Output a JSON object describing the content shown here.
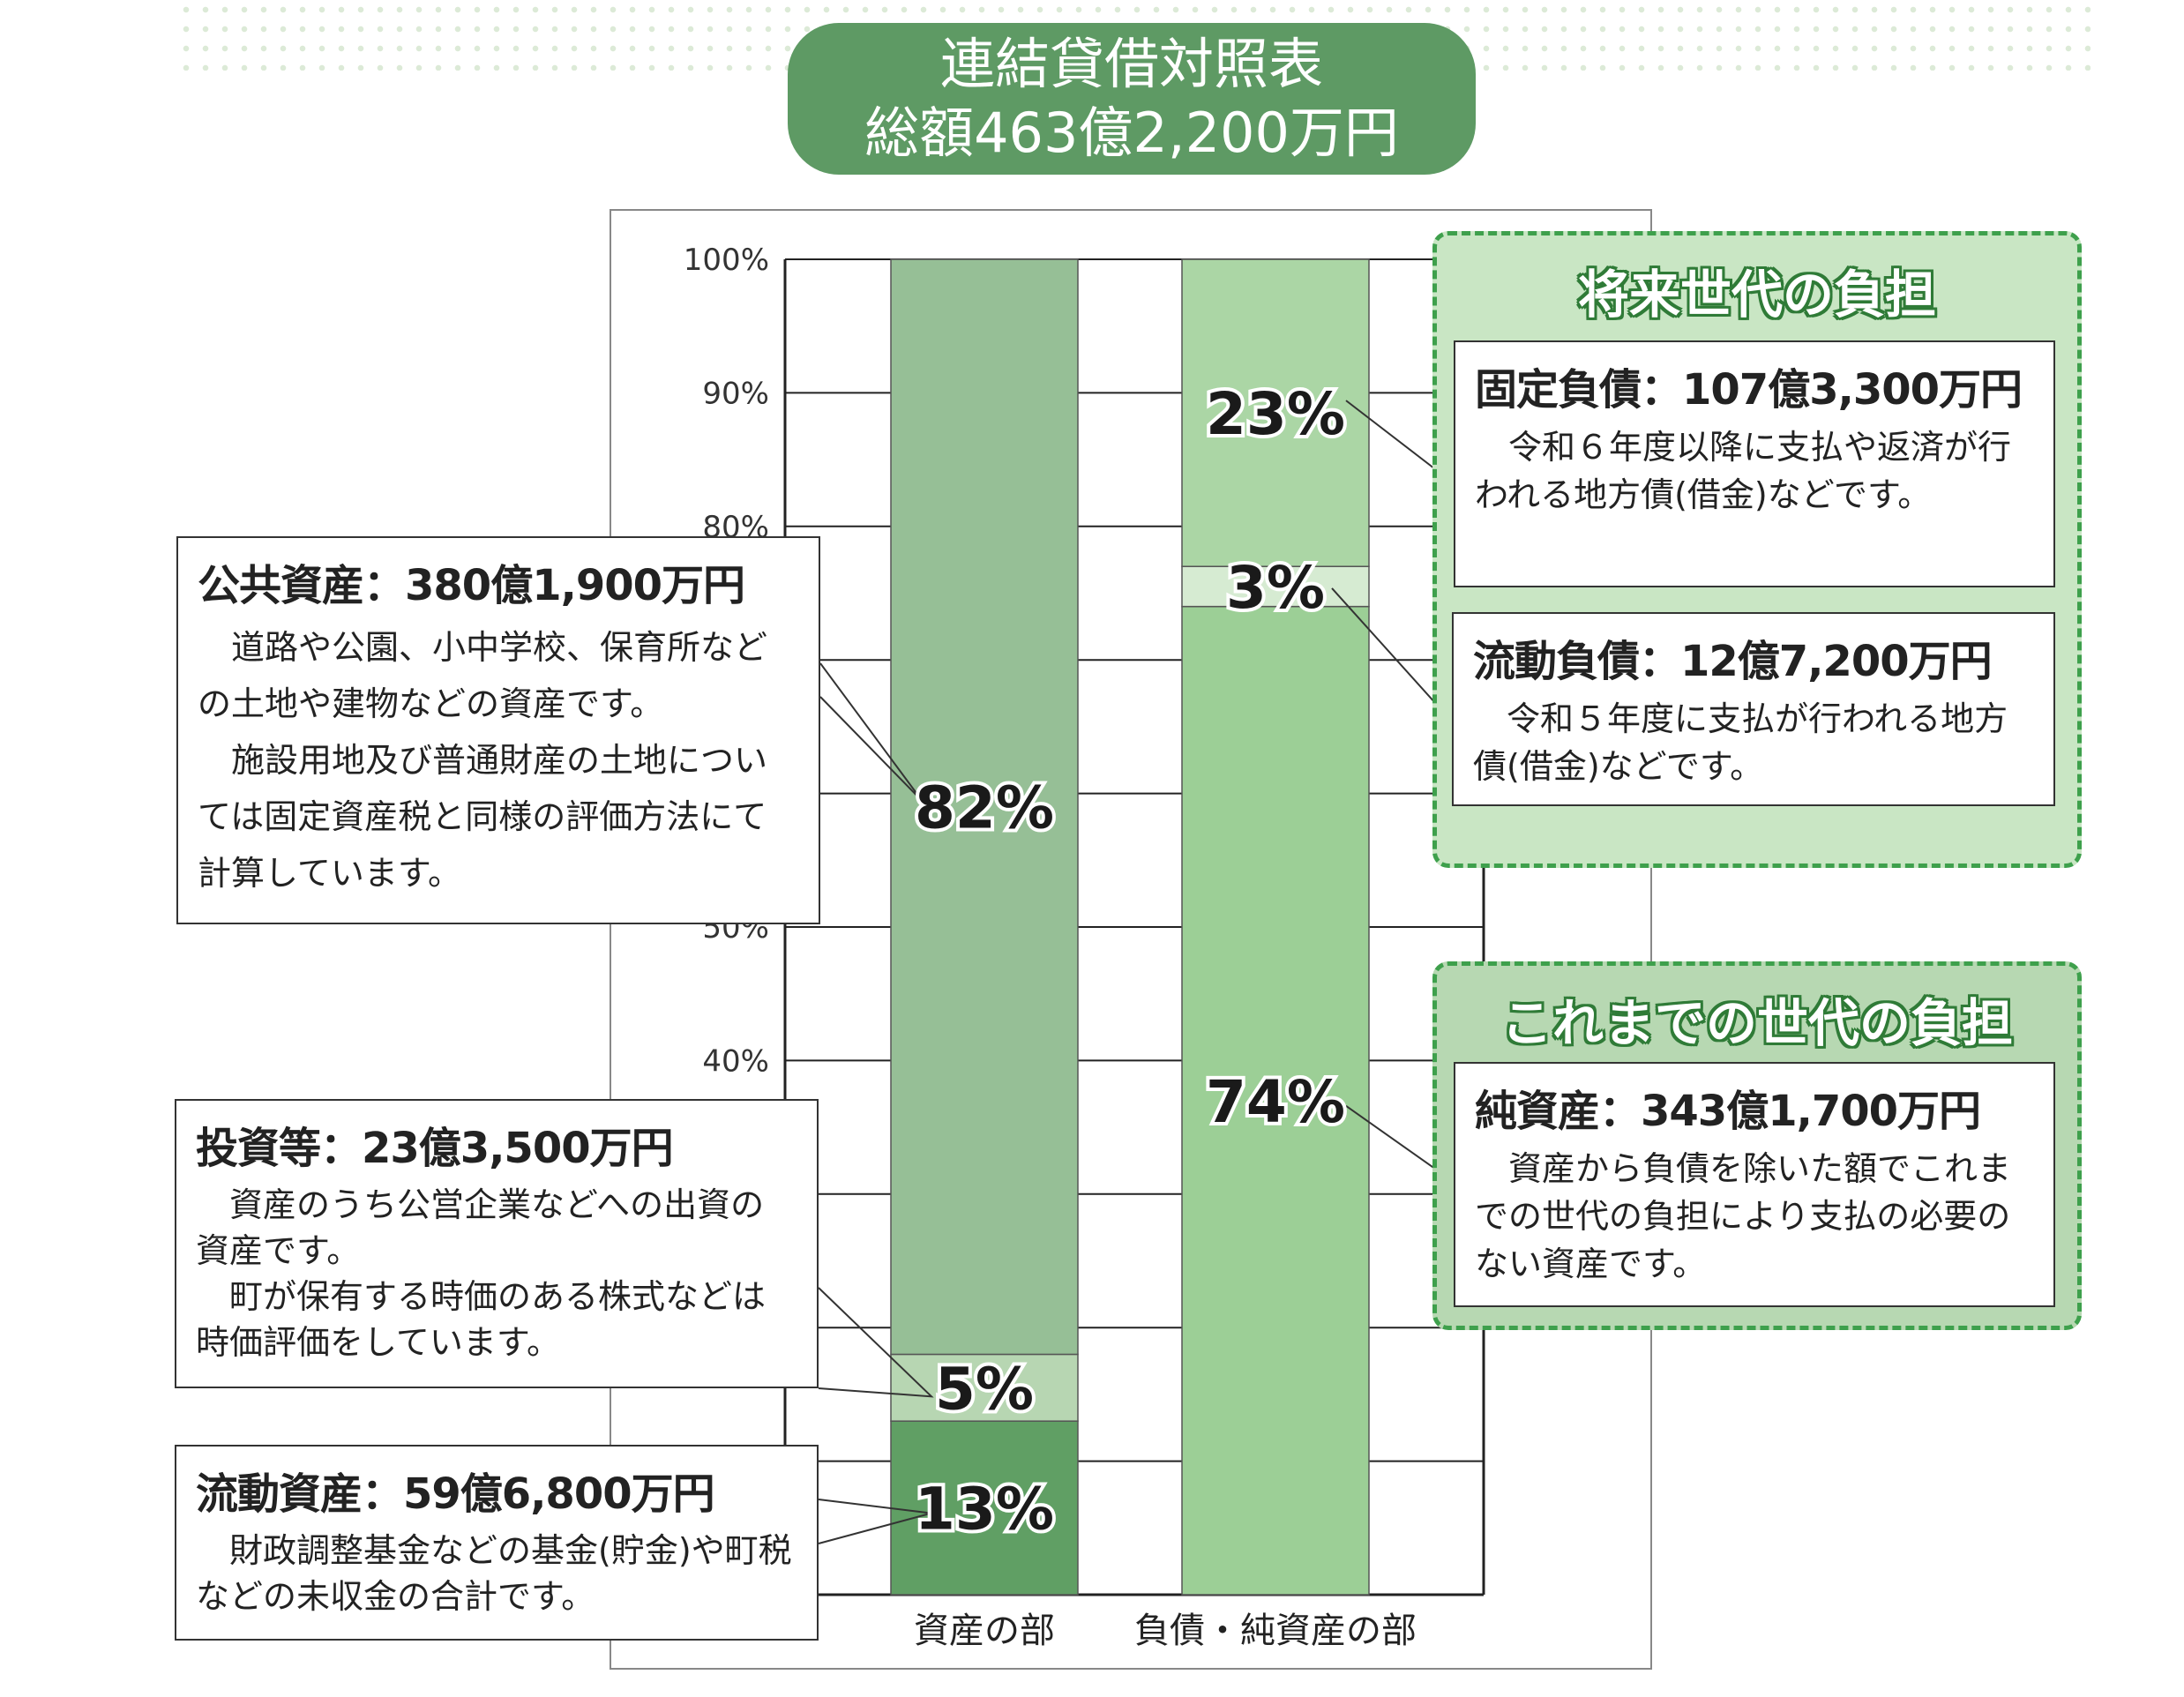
{
  "title": {
    "line1": "連結貸借対照表",
    "line2": "総額463億2,200万円"
  },
  "colors": {
    "title_bg": "#5e9a64",
    "asset_public": "#96bf96",
    "asset_invest": "#b7d6b2",
    "asset_current": "#609f64",
    "liab_fixed": "#abd6a5",
    "liab_current": "#d6ebd2",
    "net_assets": "#9ccf96",
    "future_group_bg": "#c9e6c4",
    "past_group_bg": "#b7d8b2",
    "group_border": "#3ea04c"
  },
  "chart_data": {
    "type": "bar",
    "stacked": true,
    "ylim": [
      0,
      100
    ],
    "yticks": [
      "100%",
      "90%",
      "80%",
      "50%",
      "40%"
    ],
    "categories": [
      "資産の部",
      "負債・純資産の部"
    ],
    "series": [
      {
        "name": "流動資産",
        "stack": 0,
        "values": [
          13,
          0
        ]
      },
      {
        "name": "投資等",
        "stack": 0,
        "values": [
          5,
          0
        ]
      },
      {
        "name": "公共資産",
        "stack": 0,
        "values": [
          82,
          0
        ]
      },
      {
        "name": "純資産",
        "stack": 1,
        "values": [
          0,
          74
        ]
      },
      {
        "name": "流動負債",
        "stack": 1,
        "values": [
          0,
          3
        ]
      },
      {
        "name": "固定負債",
        "stack": 1,
        "values": [
          0,
          23
        ]
      }
    ],
    "segment_labels": [
      "13%",
      "5%",
      "82%",
      "74%",
      "3%",
      "23%"
    ]
  },
  "boxes": {
    "public": {
      "head": "公共資産：380億1,900万円",
      "p1": "道路や公園、小中学校、保育所などの土地や建物などの資産です。",
      "p2": "施設用地及び普通財産の土地については固定資産税と同様の評価方法にて計算しています。"
    },
    "invest": {
      "head": "投資等：23億3,500万円",
      "p1": "資産のうち公営企業などへの出資の資産です。",
      "p2": "町が保有する時価のある株式などは時価評価をしています。"
    },
    "current_assets": {
      "head": "流動資産：59億6,800万円",
      "p1": "財政調整基金などの基金(貯金)や町税などの未収金の合計です。"
    },
    "fixed_liab": {
      "head": "固定負債：107億3,300万円",
      "p1": "令和６年度以降に支払や返済が行われる地方債(借金)などです。"
    },
    "current_liab": {
      "head": "流動負債：12億7,200万円",
      "p1": "令和５年度に支払が行われる地方債(借金)などです。"
    },
    "net_assets": {
      "head": "純資産：343億1,700万円",
      "p1": "資産から負債を除いた額でこれまでの世代の負担により支払の必要のない資産です。"
    }
  },
  "groups": {
    "future": "将来世代の負担",
    "past": "これまでの世代の負担"
  }
}
